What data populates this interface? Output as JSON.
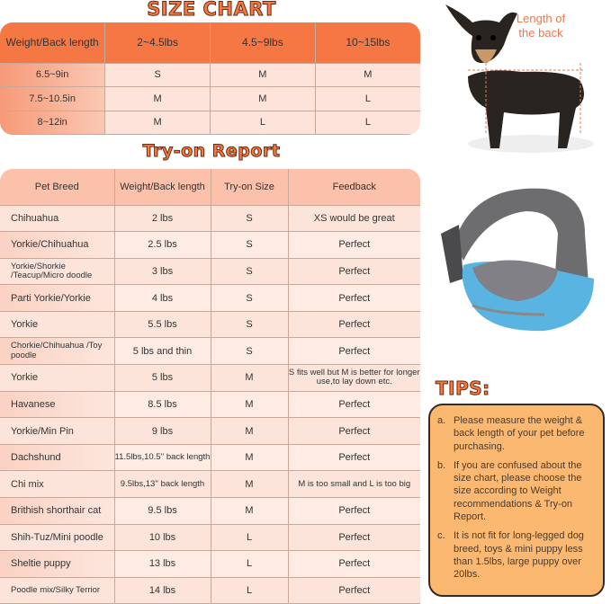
{
  "size_chart": {
    "title": "SIZE CHART",
    "headers": [
      "Weight/Back length",
      "2~4.5lbs",
      "4.5~9lbs",
      "10~15lbs"
    ],
    "rows": [
      [
        "6.5~9in",
        "S",
        "M",
        "M"
      ],
      [
        "7.5~10.5in",
        "M",
        "M",
        "L"
      ],
      [
        "8~12in",
        "M",
        "L",
        "L"
      ]
    ]
  },
  "tryon": {
    "title": "Try-on Report",
    "headers": [
      "Pet Breed",
      "Weight/Back length",
      "Try-on Size",
      "Feedback"
    ],
    "rows": [
      [
        "Chihuahua",
        "2 lbs",
        "S",
        "XS would be great"
      ],
      [
        "Yorkie/Chihuahua",
        "2.5 lbs",
        "S",
        "Perfect"
      ],
      [
        "Yorkie/Shorkie /Teacup/Micro doodle",
        "3 lbs",
        "S",
        "Perfect"
      ],
      [
        "Parti Yorkie/Yorkie",
        "4 lbs",
        "S",
        "Perfect"
      ],
      [
        "Yorkie",
        "5.5 lbs",
        "S",
        "Perfect"
      ],
      [
        "Chorkie/Chihuahua /Toy poodle",
        "5 lbs and thin",
        "S",
        "Perfect"
      ],
      [
        "Yorkie",
        "5 lbs",
        "M",
        "S fits well but M is better for longer use,to lay down etc."
      ],
      [
        "Havanese",
        "8.5 lbs",
        "M",
        "Perfect"
      ],
      [
        "Yorkie/Min Pin",
        "9 lbs",
        "M",
        "Perfect"
      ],
      [
        "Dachshund",
        "11.5lbs,10.5'' back length",
        "M",
        "Perfect"
      ],
      [
        "Chi mix",
        "9.5lbs,13'' back length",
        "M",
        "M is too small and L is too big"
      ],
      [
        "Brithish shorthair cat",
        "9.5 lbs",
        "M",
        "Perfect"
      ],
      [
        "Shih-Tuz/Mini poodle",
        "10 lbs",
        "L",
        "Perfect"
      ],
      [
        "Sheltie puppy",
        "13 lbs",
        "L",
        "Perfect"
      ],
      [
        "Poodle mix/Silky Terrior",
        "14 lbs",
        "L",
        "Perfect"
      ]
    ]
  },
  "dog_label": "Length of the back",
  "tips": {
    "title": "TIPS:",
    "items": [
      {
        "letter": "a.",
        "text": "Please measure the weight & back length of your pet before purchasing."
      },
      {
        "letter": "b.",
        "text": "If you are confused about the size chart, please choose the size according to Weight recommendations & Try-on Report."
      },
      {
        "letter": "c.",
        "text": "It is not fit for long-legged dog breed, toys & mini puppy less than 1.5lbs, large puppy over 20lbs."
      }
    ]
  },
  "colors": {
    "accent": "#f57743",
    "tips_bg": "#fbb870",
    "bag_blue": "#4aa8d8"
  }
}
